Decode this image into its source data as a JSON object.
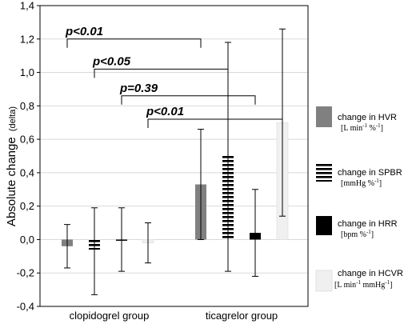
{
  "chart_data": {
    "type": "bar",
    "ylabel_main": "Absolute change",
    "ylabel_suffix": "(delta)",
    "xlabel": "",
    "ylim": [
      -0.4,
      1.4
    ],
    "yticks": [
      "-0,4",
      "-0,2",
      "0,0",
      "0,2",
      "0,4",
      "0,6",
      "0,8",
      "1,0",
      "1,2",
      "1,4"
    ],
    "ytick_values": [
      -0.4,
      -0.2,
      0.0,
      0.2,
      0.4,
      0.6,
      0.8,
      1.0,
      1.2,
      1.4
    ],
    "grid": "horizontal",
    "legend_position": "right",
    "categories": [
      "clopidogrel group",
      "ticagrelor group"
    ],
    "series": [
      {
        "name": "change in HVR",
        "unit": "[L min",
        "unit_sup": "-1",
        "unit_rest": " %",
        "unit_sup2": "-1",
        "unit_end": "]",
        "pattern": "gray",
        "values": [
          -0.04,
          0.33
        ],
        "err_low": [
          -0.17,
          0.0
        ],
        "err_high": [
          0.09,
          0.66
        ]
      },
      {
        "name": "change in SPBR",
        "unit": "[mmHg %",
        "unit_sup": "-1",
        "unit_rest": "",
        "unit_sup2": "",
        "unit_end": "]",
        "pattern": "hstripes",
        "values": [
          -0.06,
          0.5
        ],
        "err_low": [
          -0.33,
          -0.19
        ],
        "err_high": [
          0.19,
          1.18
        ]
      },
      {
        "name": "change in HRR",
        "unit": "[bpm %",
        "unit_sup": "-1",
        "unit_rest": "",
        "unit_sup2": "",
        "unit_end": "]",
        "pattern": "black",
        "values": [
          0.0,
          0.04
        ],
        "err_low": [
          -0.19,
          -0.22
        ],
        "err_high": [
          0.19,
          0.3
        ]
      },
      {
        "name": "change in HCVR",
        "unit": "[L min",
        "unit_sup": "-1",
        "unit_rest": " mmHg",
        "unit_sup2": "-1",
        "unit_end": "]",
        "pattern": "lightgray",
        "values": [
          -0.02,
          0.7
        ],
        "err_low": [
          -0.14,
          0.14
        ],
        "err_high": [
          0.1,
          1.26
        ]
      }
    ],
    "annotations": [
      {
        "label": "p<0.01",
        "series_index": 0,
        "level": 1.2
      },
      {
        "label": "p<0.05",
        "series_index": 1,
        "level": 1.02
      },
      {
        "label": "p=0.39",
        "series_index": 2,
        "level": 0.86
      },
      {
        "label": "p<0.01",
        "series_index": 3,
        "level": 0.72
      }
    ]
  },
  "colors": {
    "gray": "#808080",
    "black": "#000000",
    "lightgray": "#f0f0f0",
    "grid": "#d9d9d9"
  }
}
